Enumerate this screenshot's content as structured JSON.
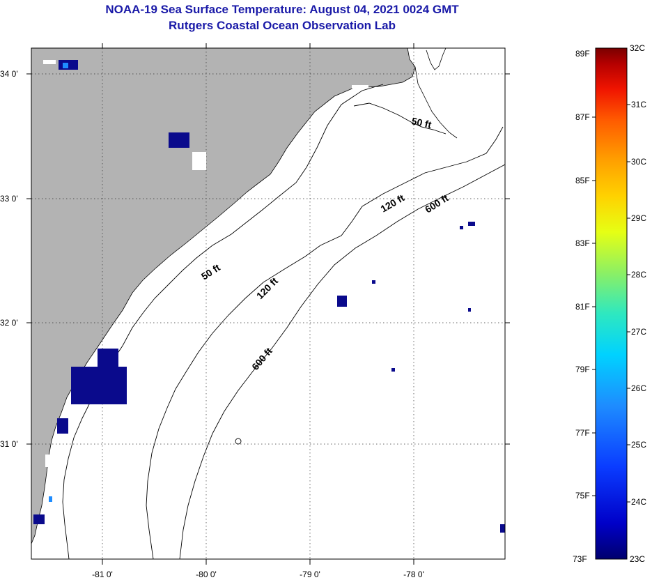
{
  "header": {
    "title_line1": "NOAA-19 Sea Surface Temperature:  August 04, 2021 0024 GMT",
    "title_line2": "Rutgers Coastal Ocean Observation Lab"
  },
  "map": {
    "lat_labels": [
      "34 0'",
      "33 0'",
      "32 0'",
      "31 0'"
    ],
    "lon_labels": [
      "-81 0'",
      "-80 0'",
      "-79 0'",
      "-78 0'"
    ],
    "contour_labels": [
      "50 ft",
      "50 ft",
      "120 ft",
      "120 ft",
      "600 ft",
      "600 ft"
    ]
  },
  "colorbar": {
    "fahrenheit": [
      "89F",
      "87F",
      "85F",
      "83F",
      "81F",
      "79F",
      "77F",
      "75F",
      "73F"
    ],
    "celsius": [
      "32C",
      "31C",
      "30C",
      "29C",
      "28C",
      "27C",
      "26C",
      "25C",
      "24C",
      "23C"
    ]
  },
  "colors": {
    "land": "#b3b3b3",
    "water": "#ffffff",
    "title": "#1a1aa8",
    "cold_sst": "#0a0a8c",
    "warm_sst": "#9c0a0a"
  }
}
